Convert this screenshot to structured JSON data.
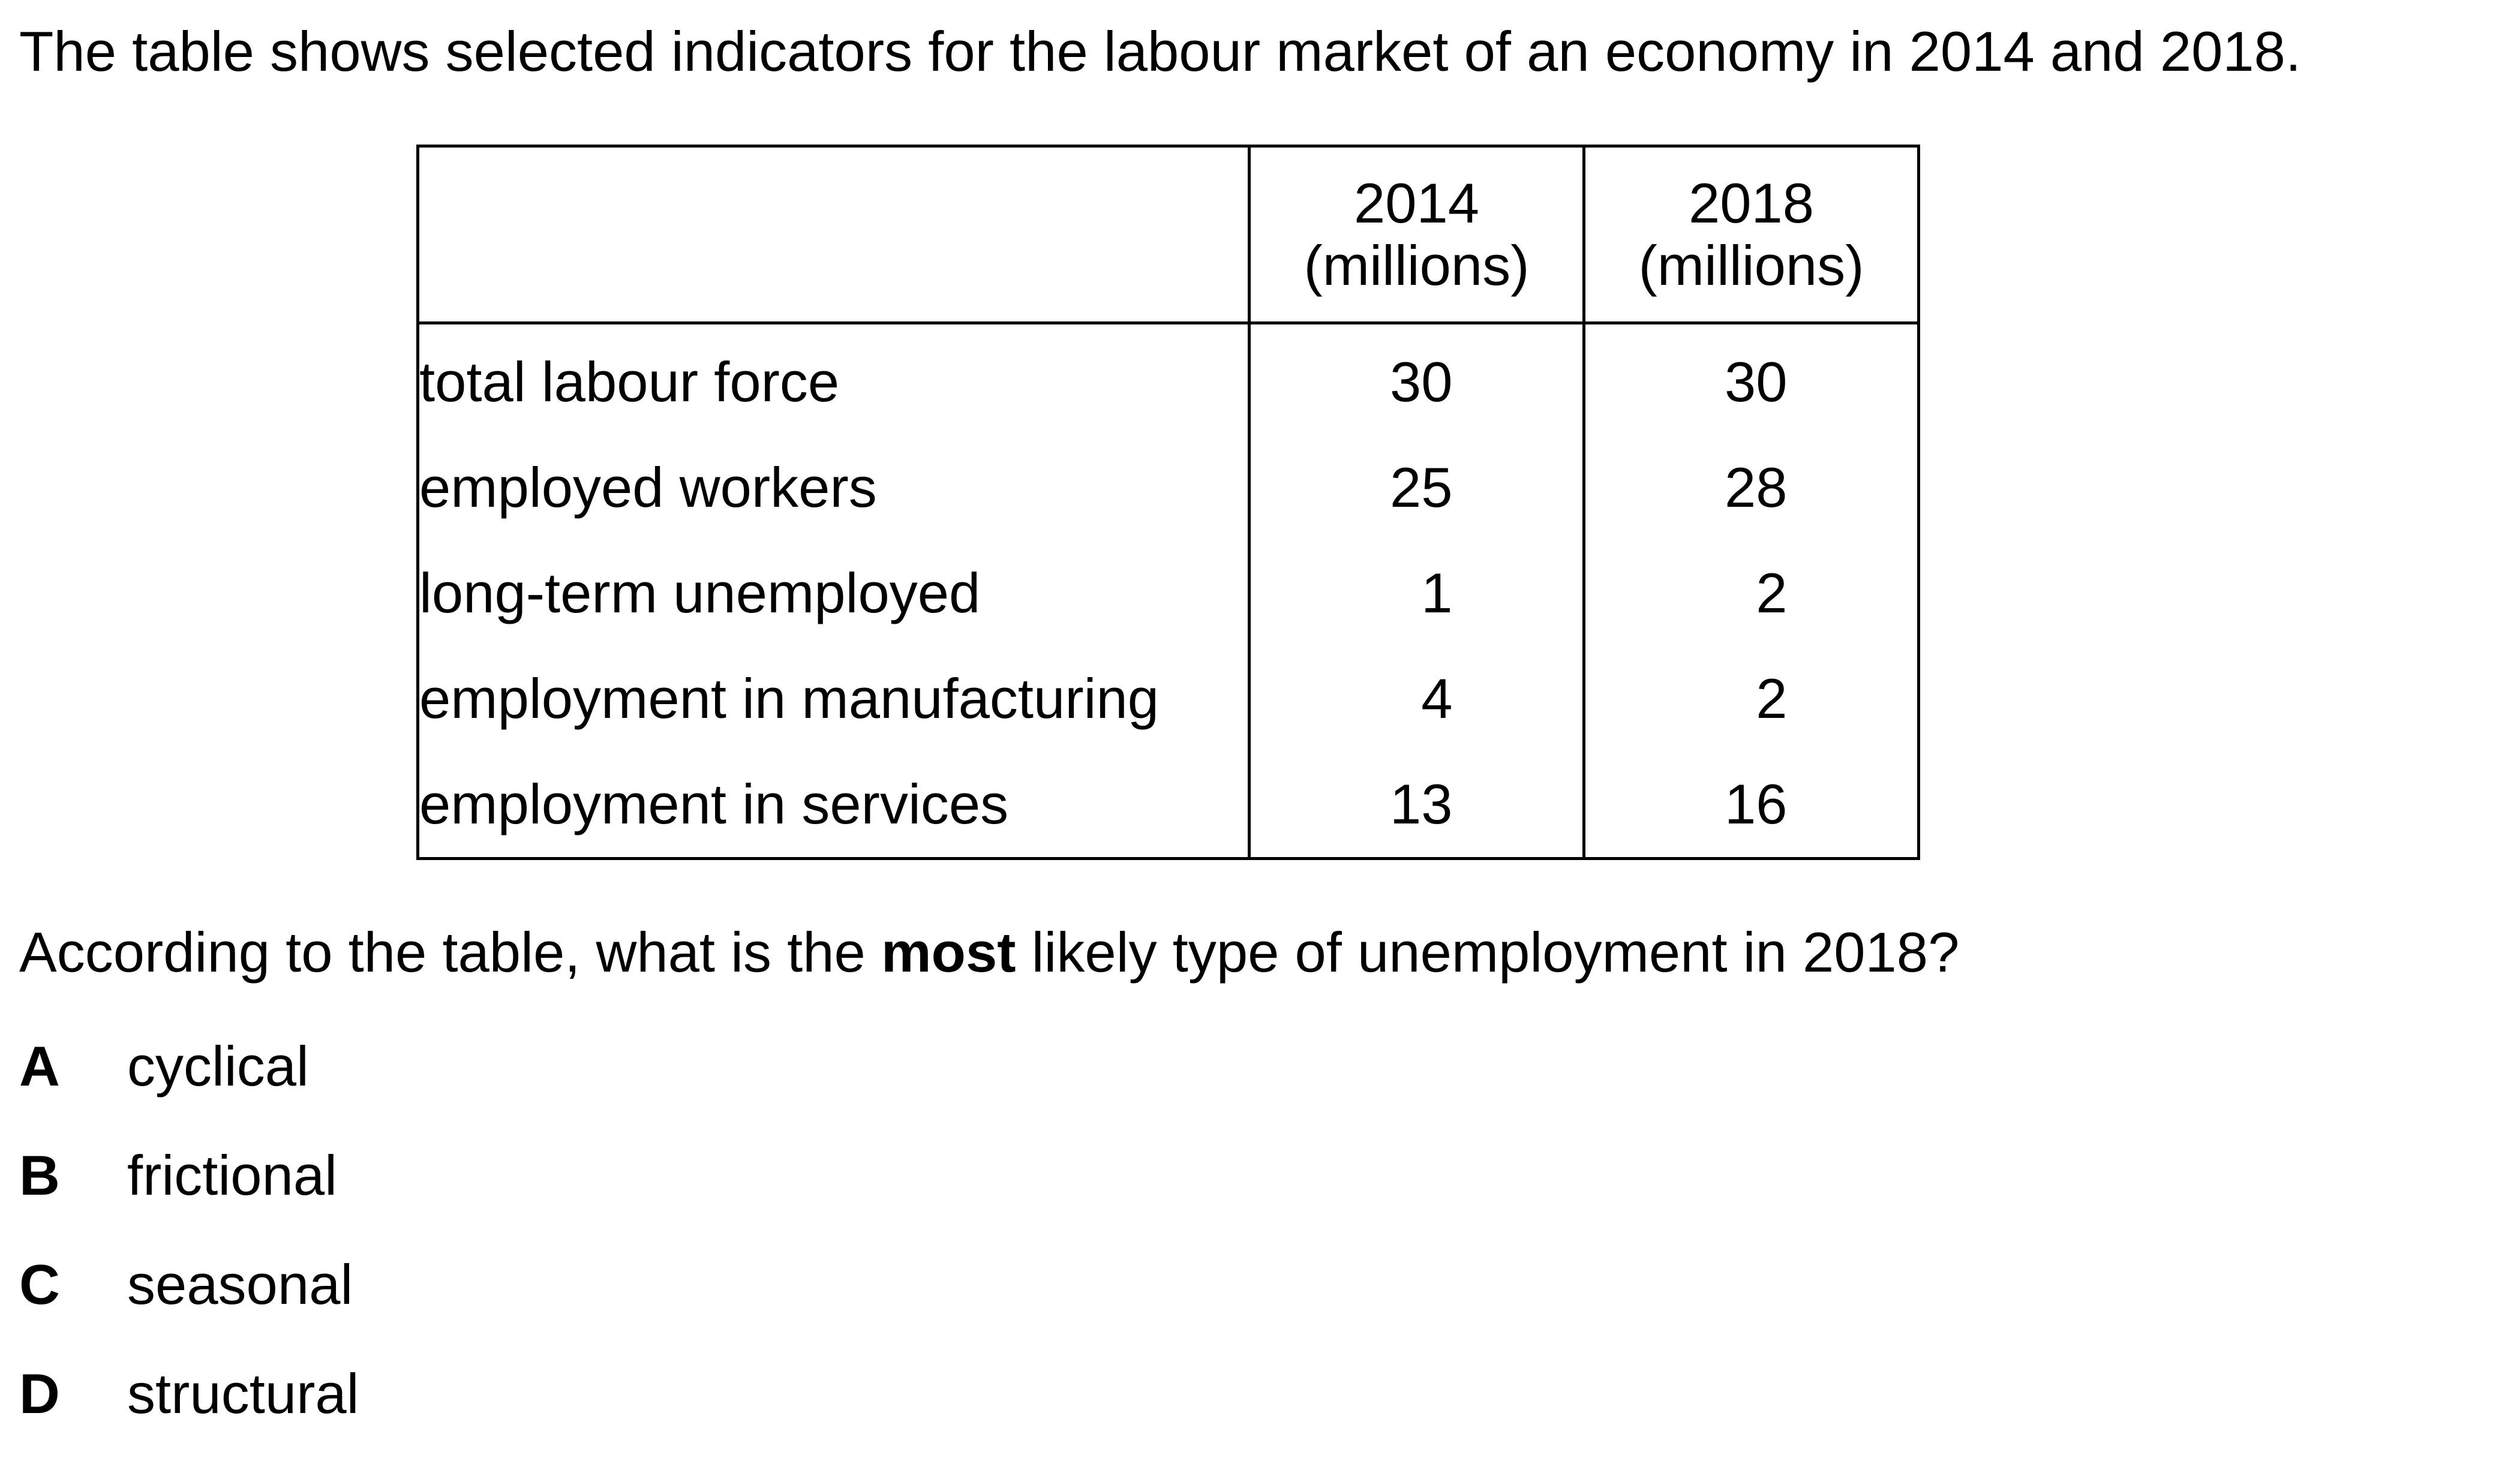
{
  "intro": "The table shows selected indicators for the labour market of an economy in 2014 and 2018.",
  "table": {
    "header_blank": "",
    "columns": [
      {
        "year": "2014",
        "unit": "(millions)"
      },
      {
        "year": "2018",
        "unit": "(millions)"
      }
    ],
    "rows": [
      {
        "label": "total labour force",
        "v2014": "30",
        "v2018": "30"
      },
      {
        "label": "employed workers",
        "v2014": "25",
        "v2018": "28"
      },
      {
        "label": "long-term unemployed",
        "v2014": "1",
        "v2018": "2"
      },
      {
        "label": "employment in manufacturing",
        "v2014": "4",
        "v2018": "2"
      },
      {
        "label": "employment in services",
        "v2014": "13",
        "v2018": "16"
      }
    ]
  },
  "question": {
    "before": "According to the table, what is the ",
    "emphasis": "most",
    "after": " likely type of unemployment in 2018?"
  },
  "options": [
    {
      "letter": "A",
      "text": "cyclical"
    },
    {
      "letter": "B",
      "text": "frictional"
    },
    {
      "letter": "C",
      "text": "seasonal"
    },
    {
      "letter": "D",
      "text": "structural"
    }
  ]
}
